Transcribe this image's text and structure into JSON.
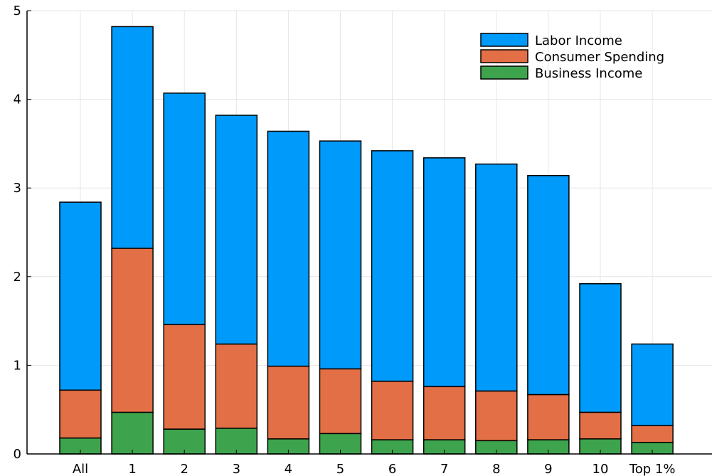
{
  "chart_data": {
    "type": "bar",
    "stacked": true,
    "title": "",
    "xlabel": "",
    "ylabel": "",
    "categories": [
      "All",
      "1",
      "2",
      "3",
      "4",
      "5",
      "6",
      "7",
      "8",
      "9",
      "10",
      "Top 1%"
    ],
    "series": [
      {
        "name": "Business Income",
        "color": "#3da44d",
        "values": [
          0.18,
          0.47,
          0.28,
          0.29,
          0.17,
          0.23,
          0.16,
          0.16,
          0.15,
          0.16,
          0.17,
          0.13
        ]
      },
      {
        "name": "Consumer Spending",
        "color": "#e26f46",
        "values": [
          0.54,
          1.85,
          1.18,
          0.95,
          0.82,
          0.73,
          0.66,
          0.6,
          0.56,
          0.51,
          0.3,
          0.19
        ]
      },
      {
        "name": "Labor Income",
        "color": "#009afa",
        "values": [
          2.12,
          2.5,
          2.61,
          2.58,
          2.65,
          2.57,
          2.6,
          2.58,
          2.56,
          2.47,
          1.45,
          0.92
        ]
      }
    ],
    "legend_order": [
      "Labor Income",
      "Consumer Spending",
      "Business Income"
    ],
    "ylim": [
      0,
      5
    ],
    "yticks": [
      0,
      1,
      2,
      3,
      4,
      5
    ],
    "grid": true,
    "legend_position": "top-right"
  }
}
